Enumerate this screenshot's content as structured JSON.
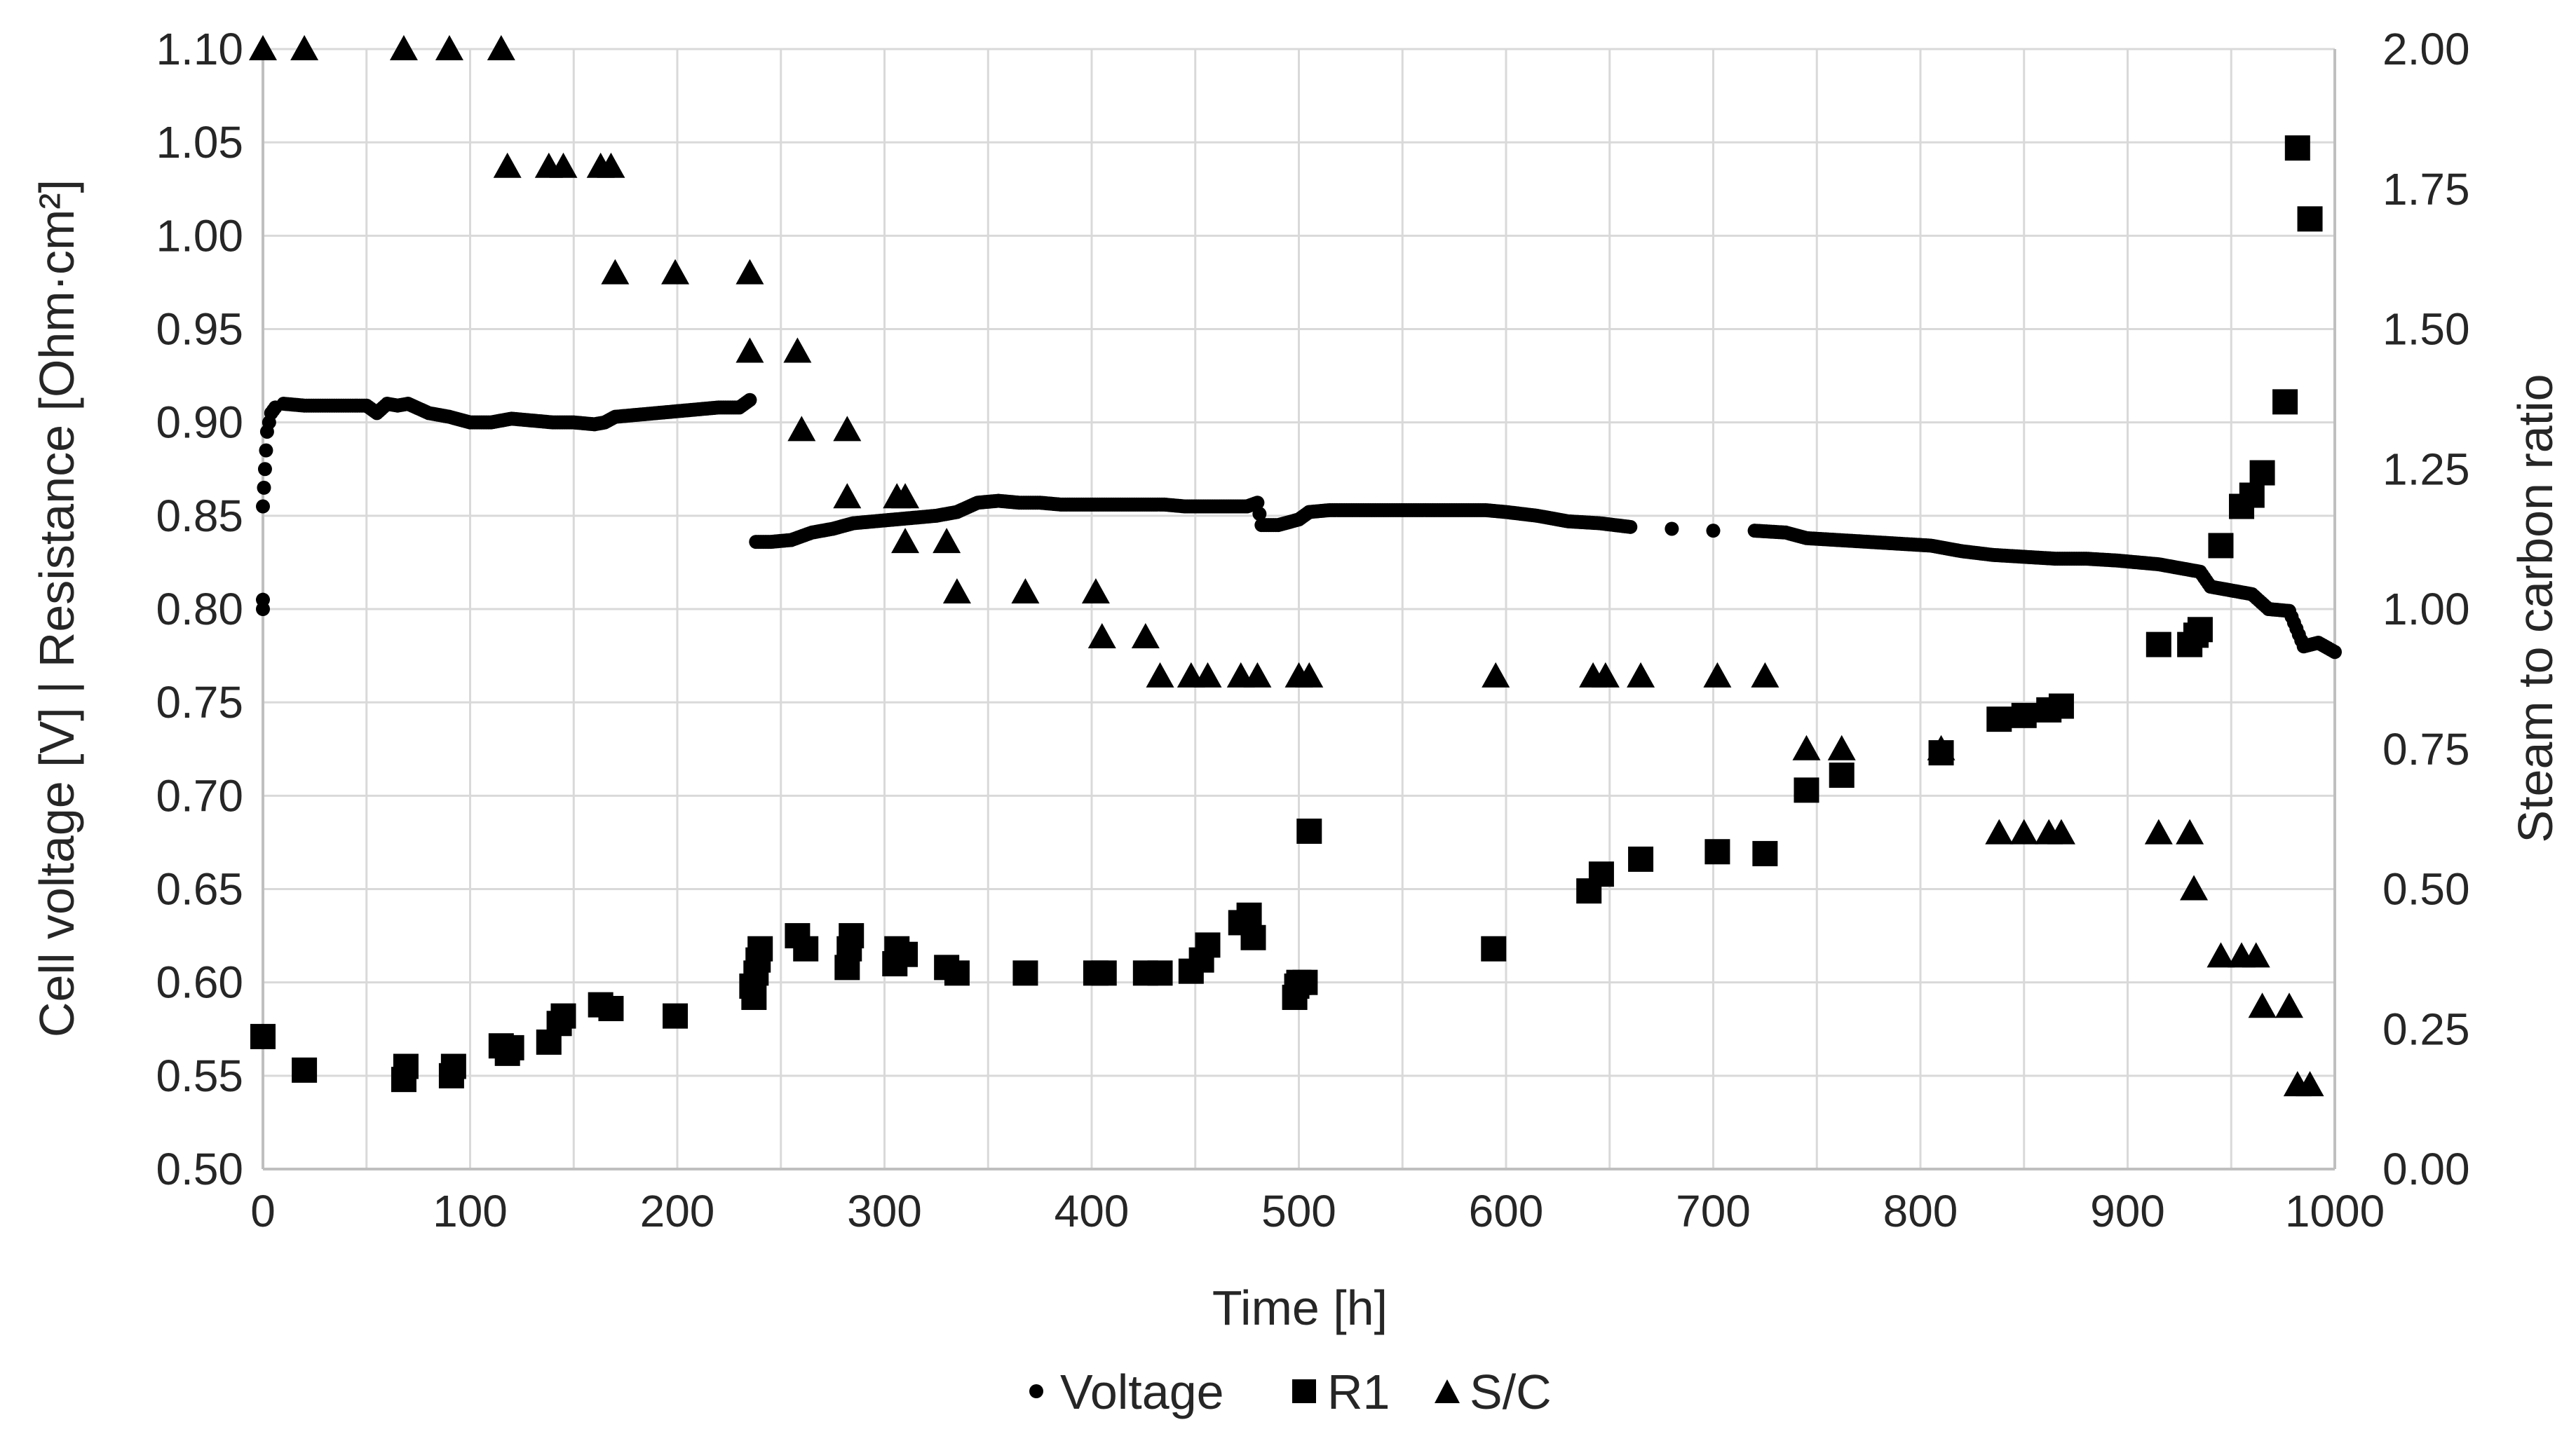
{
  "chart_data": {
    "type": "scatter",
    "title": "",
    "xlabel": "Time [h]",
    "ylabel": "Cell voltage [V] | Resistance [Ohm·cm²]",
    "y2label": "Steam to carbon ratio",
    "xlim": [
      0,
      1000
    ],
    "ylim": [
      0.5,
      1.1
    ],
    "y2lim": [
      0,
      2
    ],
    "grid": true,
    "legend_position": "bottom",
    "x_ticks": [
      "0",
      "100",
      "200",
      "300",
      "400",
      "500",
      "600",
      "700",
      "800",
      "900",
      "1000"
    ],
    "y_ticks": [
      "0.50",
      "0.55",
      "0.60",
      "0.65",
      "0.70",
      "0.75",
      "0.80",
      "0.85",
      "0.90",
      "0.95",
      "1.00",
      "1.05",
      "1.10"
    ],
    "y2_ticks": [
      "0.00",
      "0.25",
      "0.50",
      "0.75",
      "1.00",
      "1.25",
      "1.50",
      "1.75",
      "2.00"
    ],
    "series": [
      {
        "name": "Voltage",
        "marker": "circle",
        "axis": "left",
        "points": [
          [
            0,
            0.855
          ],
          [
            0.5,
            0.865
          ],
          [
            1,
            0.875
          ],
          [
            1.5,
            0.885
          ],
          [
            2,
            0.895
          ],
          [
            3,
            0.9
          ],
          [
            4,
            0.905
          ],
          [
            6,
            0.908
          ],
          [
            0,
            0.8
          ],
          [
            0,
            0.805
          ],
          [
            10,
            0.91
          ],
          [
            20,
            0.909
          ],
          [
            30,
            0.909
          ],
          [
            40,
            0.909
          ],
          [
            50,
            0.909
          ],
          [
            55,
            0.905
          ],
          [
            60,
            0.91
          ],
          [
            65,
            0.909
          ],
          [
            70,
            0.91
          ],
          [
            80,
            0.905
          ],
          [
            90,
            0.903
          ],
          [
            100,
            0.9
          ],
          [
            110,
            0.9
          ],
          [
            120,
            0.902
          ],
          [
            130,
            0.901
          ],
          [
            140,
            0.9
          ],
          [
            150,
            0.9
          ],
          [
            160,
            0.899
          ],
          [
            165,
            0.9
          ],
          [
            170,
            0.903
          ],
          [
            180,
            0.904
          ],
          [
            190,
            0.905
          ],
          [
            200,
            0.906
          ],
          [
            210,
            0.907
          ],
          [
            220,
            0.908
          ],
          [
            230,
            0.908
          ],
          [
            235,
            0.912
          ],
          [
            238,
            0.836
          ],
          [
            245,
            0.836
          ],
          [
            255,
            0.837
          ],
          [
            265,
            0.841
          ],
          [
            275,
            0.843
          ],
          [
            285,
            0.846
          ],
          [
            295,
            0.847
          ],
          [
            305,
            0.848
          ],
          [
            315,
            0.849
          ],
          [
            325,
            0.85
          ],
          [
            335,
            0.852
          ],
          [
            345,
            0.857
          ],
          [
            355,
            0.858
          ],
          [
            365,
            0.857
          ],
          [
            375,
            0.857
          ],
          [
            385,
            0.856
          ],
          [
            395,
            0.856
          ],
          [
            405,
            0.856
          ],
          [
            415,
            0.856
          ],
          [
            425,
            0.856
          ],
          [
            435,
            0.856
          ],
          [
            445,
            0.855
          ],
          [
            455,
            0.855
          ],
          [
            465,
            0.855
          ],
          [
            475,
            0.855
          ],
          [
            480,
            0.857
          ],
          [
            482,
            0.845
          ],
          [
            490,
            0.845
          ],
          [
            500,
            0.848
          ],
          [
            505,
            0.852
          ],
          [
            515,
            0.853
          ],
          [
            530,
            0.853
          ],
          [
            545,
            0.853
          ],
          [
            560,
            0.853
          ],
          [
            575,
            0.853
          ],
          [
            590,
            0.853
          ],
          [
            600,
            0.852
          ],
          [
            615,
            0.85
          ],
          [
            630,
            0.847
          ],
          [
            645,
            0.846
          ],
          [
            660,
            0.844
          ],
          [
            680,
            0.843
          ],
          [
            700,
            0.842
          ],
          [
            720,
            0.842
          ],
          [
            735,
            0.841
          ],
          [
            745,
            0.838
          ],
          [
            760,
            0.837
          ],
          [
            775,
            0.836
          ],
          [
            790,
            0.835
          ],
          [
            805,
            0.834
          ],
          [
            820,
            0.831
          ],
          [
            835,
            0.829
          ],
          [
            850,
            0.828
          ],
          [
            865,
            0.827
          ],
          [
            880,
            0.827
          ],
          [
            895,
            0.826
          ],
          [
            905,
            0.825
          ],
          [
            915,
            0.824
          ],
          [
            925,
            0.822
          ],
          [
            935,
            0.82
          ],
          [
            940,
            0.812
          ],
          [
            950,
            0.81
          ],
          [
            960,
            0.808
          ],
          [
            968,
            0.8
          ],
          [
            978,
            0.799
          ],
          [
            985,
            0.78
          ],
          [
            992,
            0.782
          ],
          [
            1000,
            0.777
          ]
        ]
      },
      {
        "name": "R1",
        "marker": "square",
        "axis": "left",
        "points": [
          [
            0,
            0.571
          ],
          [
            20,
            0.553
          ],
          [
            68,
            0.548
          ],
          [
            69,
            0.555
          ],
          [
            91,
            0.55
          ],
          [
            92,
            0.555
          ],
          [
            115,
            0.566
          ],
          [
            118,
            0.562
          ],
          [
            120,
            0.565
          ],
          [
            138,
            0.568
          ],
          [
            143,
            0.578
          ],
          [
            145,
            0.582
          ],
          [
            163,
            0.588
          ],
          [
            168,
            0.586
          ],
          [
            199,
            0.582
          ],
          [
            236,
            0.598
          ],
          [
            237,
            0.592
          ],
          [
            238,
            0.605
          ],
          [
            239,
            0.612
          ],
          [
            240,
            0.618
          ],
          [
            258,
            0.625
          ],
          [
            262,
            0.618
          ],
          [
            282,
            0.608
          ],
          [
            283,
            0.618
          ],
          [
            284,
            0.625
          ],
          [
            305,
            0.61
          ],
          [
            306,
            0.618
          ],
          [
            310,
            0.615
          ],
          [
            330,
            0.608
          ],
          [
            335,
            0.605
          ],
          [
            368,
            0.605
          ],
          [
            402,
            0.605
          ],
          [
            406,
            0.605
          ],
          [
            426,
            0.605
          ],
          [
            433,
            0.605
          ],
          [
            448,
            0.606
          ],
          [
            453,
            0.612
          ],
          [
            456,
            0.62
          ],
          [
            472,
            0.632
          ],
          [
            476,
            0.636
          ],
          [
            478,
            0.624
          ],
          [
            498,
            0.592
          ],
          [
            499,
            0.598
          ],
          [
            500,
            0.6
          ],
          [
            503,
            0.6
          ],
          [
            505,
            0.681
          ],
          [
            594,
            0.618
          ],
          [
            640,
            0.649
          ],
          [
            646,
            0.658
          ],
          [
            665,
            0.666
          ],
          [
            702,
            0.67
          ],
          [
            725,
            0.669
          ],
          [
            745,
            0.703
          ],
          [
            762,
            0.711
          ],
          [
            810,
            0.723
          ],
          [
            838,
            0.741
          ],
          [
            850,
            0.743
          ],
          [
            862,
            0.746
          ],
          [
            868,
            0.748
          ],
          [
            915,
            0.781
          ],
          [
            930,
            0.781
          ],
          [
            933,
            0.786
          ],
          [
            935,
            0.789
          ],
          [
            945,
            0.834
          ],
          [
            955,
            0.855
          ],
          [
            960,
            0.861
          ],
          [
            965,
            0.873
          ],
          [
            976,
            0.911
          ],
          [
            982,
            1.047
          ],
          [
            988,
            1.009
          ]
        ]
      },
      {
        "name": "S/C",
        "marker": "triangle",
        "axis": "right",
        "points": [
          [
            0,
            2.0
          ],
          [
            20,
            2.0
          ],
          [
            68,
            2.0
          ],
          [
            90,
            2.0
          ],
          [
            115,
            2.0
          ],
          [
            118,
            1.79
          ],
          [
            138,
            1.79
          ],
          [
            145,
            1.79
          ],
          [
            163,
            1.79
          ],
          [
            168,
            1.79
          ],
          [
            170,
            1.6
          ],
          [
            199,
            1.6
          ],
          [
            235,
            1.6
          ],
          [
            235,
            1.46
          ],
          [
            258,
            1.46
          ],
          [
            260,
            1.32
          ],
          [
            282,
            1.32
          ],
          [
            282,
            1.2
          ],
          [
            306,
            1.2
          ],
          [
            310,
            1.2
          ],
          [
            310,
            1.12
          ],
          [
            330,
            1.12
          ],
          [
            335,
            1.03
          ],
          [
            368,
            1.03
          ],
          [
            402,
            1.03
          ],
          [
            405,
            0.95
          ],
          [
            426,
            0.95
          ],
          [
            433,
            0.88
          ],
          [
            448,
            0.88
          ],
          [
            456,
            0.88
          ],
          [
            472,
            0.88
          ],
          [
            480,
            0.88
          ],
          [
            500,
            0.88
          ],
          [
            505,
            0.88
          ],
          [
            595,
            0.88
          ],
          [
            642,
            0.88
          ],
          [
            648,
            0.88
          ],
          [
            665,
            0.88
          ],
          [
            702,
            0.88
          ],
          [
            725,
            0.88
          ],
          [
            745,
            0.75
          ],
          [
            762,
            0.75
          ],
          [
            810,
            0.75
          ],
          [
            838,
            0.6
          ],
          [
            850,
            0.6
          ],
          [
            862,
            0.6
          ],
          [
            868,
            0.6
          ],
          [
            915,
            0.6
          ],
          [
            930,
            0.6
          ],
          [
            932,
            0.5
          ],
          [
            945,
            0.38
          ],
          [
            955,
            0.38
          ],
          [
            962,
            0.38
          ],
          [
            965,
            0.29
          ],
          [
            978,
            0.29
          ],
          [
            982,
            0.15
          ],
          [
            988,
            0.15
          ]
        ]
      }
    ]
  }
}
